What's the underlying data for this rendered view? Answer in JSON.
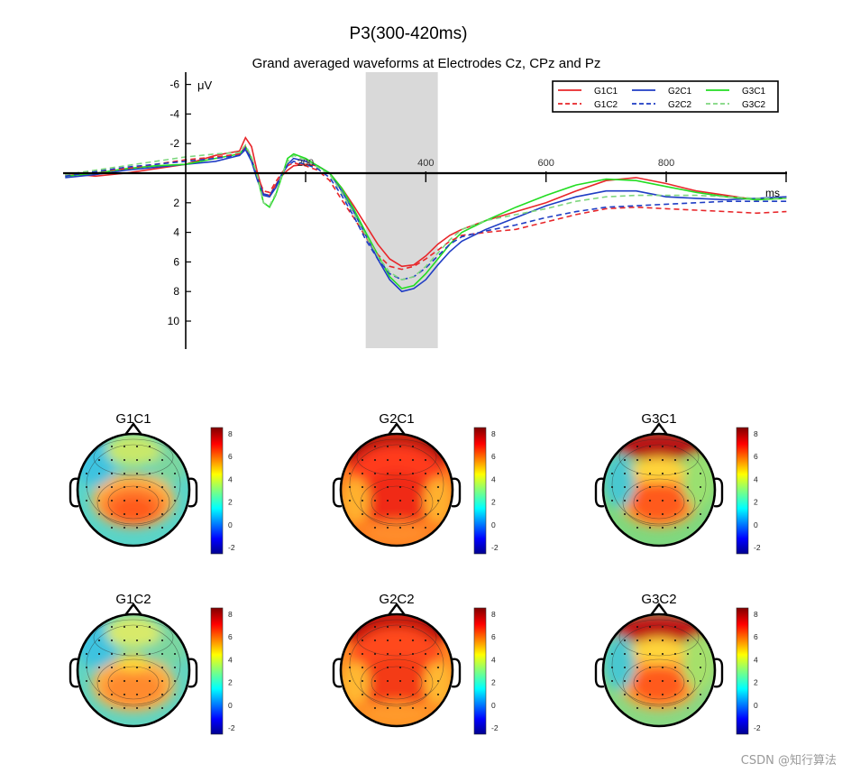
{
  "chart_data": [
    {
      "type": "line",
      "title": "P3(300-420ms)",
      "subtitle": "Grand averaged waveforms at Electrodes Cz, CPz and Pz",
      "xlabel": "ms",
      "ylabel": "μV",
      "xlim": [
        -200,
        1000
      ],
      "ylim": [
        -7,
        12
      ],
      "y_reversed": true,
      "x_ticks": [
        {
          "v": 200,
          "label": "200"
        },
        {
          "v": 400,
          "label": "400"
        },
        {
          "v": 600,
          "label": "600"
        },
        {
          "v": 800,
          "label": "800"
        }
      ],
      "y_ticks": [
        {
          "v": -6,
          "label": "-6"
        },
        {
          "v": -4,
          "label": "-4"
        },
        {
          "v": -2,
          "label": "-2"
        },
        {
          "v": 2,
          "label": "2"
        },
        {
          "v": 4,
          "label": "4"
        },
        {
          "v": 6,
          "label": "6"
        },
        {
          "v": 8,
          "label": "8"
        },
        {
          "v": 10,
          "label": "10"
        }
      ],
      "shaded_window_ms": [
        300,
        420
      ],
      "legend_position": "top-right",
      "series": [
        {
          "name": "G1C1",
          "color": "#e8262a",
          "dash": false,
          "points": [
            [
              -200,
              0
            ],
            [
              -150,
              0.2
            ],
            [
              -100,
              0
            ],
            [
              -50,
              -0.3
            ],
            [
              0,
              -0.6
            ],
            [
              50,
              -1.2
            ],
            [
              90,
              -1.5
            ],
            [
              100,
              -2.4
            ],
            [
              110,
              -1.8
            ],
            [
              120,
              0
            ],
            [
              130,
              1.4
            ],
            [
              140,
              1.5
            ],
            [
              150,
              0.8
            ],
            [
              160,
              0.2
            ],
            [
              170,
              -0.2
            ],
            [
              180,
              -0.5
            ],
            [
              200,
              -0.6
            ],
            [
              220,
              -0.5
            ],
            [
              240,
              0
            ],
            [
              260,
              1
            ],
            [
              280,
              2.2
            ],
            [
              300,
              3.5
            ],
            [
              320,
              4.8
            ],
            [
              340,
              5.8
            ],
            [
              360,
              6.3
            ],
            [
              380,
              6.2
            ],
            [
              400,
              5.6
            ],
            [
              420,
              4.8
            ],
            [
              440,
              4.2
            ],
            [
              460,
              3.8
            ],
            [
              500,
              3.2
            ],
            [
              550,
              2.6
            ],
            [
              600,
              2
            ],
            [
              650,
              1.2
            ],
            [
              700,
              0.5
            ],
            [
              750,
              0.3
            ],
            [
              800,
              0.7
            ],
            [
              850,
              1.2
            ],
            [
              900,
              1.5
            ],
            [
              950,
              1.8
            ],
            [
              1000,
              1.6
            ]
          ]
        },
        {
          "name": "G2C1",
          "color": "#1f3dc4",
          "dash": false,
          "points": [
            [
              -200,
              0.3
            ],
            [
              -150,
              0.1
            ],
            [
              -100,
              -0.2
            ],
            [
              -50,
              -0.4
            ],
            [
              0,
              -0.6
            ],
            [
              50,
              -0.8
            ],
            [
              90,
              -1.2
            ],
            [
              100,
              -1.6
            ],
            [
              110,
              -0.8
            ],
            [
              120,
              0.5
            ],
            [
              130,
              1.5
            ],
            [
              140,
              1.6
            ],
            [
              150,
              1
            ],
            [
              160,
              0.2
            ],
            [
              170,
              -0.6
            ],
            [
              180,
              -1
            ],
            [
              200,
              -0.8
            ],
            [
              220,
              -0.5
            ],
            [
              240,
              0
            ],
            [
              260,
              1.2
            ],
            [
              280,
              2.6
            ],
            [
              300,
              4.2
            ],
            [
              320,
              5.8
            ],
            [
              340,
              7.2
            ],
            [
              360,
              8
            ],
            [
              380,
              7.8
            ],
            [
              400,
              7.2
            ],
            [
              420,
              6.2
            ],
            [
              440,
              5.3
            ],
            [
              460,
              4.6
            ],
            [
              500,
              3.8
            ],
            [
              550,
              3
            ],
            [
              600,
              2.2
            ],
            [
              650,
              1.6
            ],
            [
              700,
              1.2
            ],
            [
              750,
              1.2
            ],
            [
              800,
              1.6
            ],
            [
              850,
              1.7
            ],
            [
              900,
              1.8
            ],
            [
              950,
              1.7
            ],
            [
              1000,
              1.6
            ]
          ]
        },
        {
          "name": "G3C1",
          "color": "#22dd22",
          "dash": false,
          "points": [
            [
              -200,
              0.2
            ],
            [
              -150,
              0
            ],
            [
              -100,
              -0.3
            ],
            [
              -50,
              -0.5
            ],
            [
              0,
              -0.6
            ],
            [
              50,
              -1
            ],
            [
              90,
              -1.3
            ],
            [
              100,
              -1.8
            ],
            [
              110,
              -1
            ],
            [
              120,
              0.3
            ],
            [
              130,
              2
            ],
            [
              140,
              2.3
            ],
            [
              150,
              1.5
            ],
            [
              160,
              0.3
            ],
            [
              170,
              -1
            ],
            [
              180,
              -1.3
            ],
            [
              200,
              -1
            ],
            [
              220,
              -0.5
            ],
            [
              240,
              0
            ],
            [
              260,
              1
            ],
            [
              280,
              2.4
            ],
            [
              300,
              4
            ],
            [
              320,
              5.5
            ],
            [
              340,
              7
            ],
            [
              360,
              7.8
            ],
            [
              380,
              7.6
            ],
            [
              400,
              6.8
            ],
            [
              420,
              5.8
            ],
            [
              440,
              4.8
            ],
            [
              460,
              4
            ],
            [
              500,
              3.2
            ],
            [
              550,
              2.3
            ],
            [
              600,
              1.5
            ],
            [
              650,
              0.8
            ],
            [
              700,
              0.4
            ],
            [
              750,
              0.5
            ],
            [
              800,
              0.9
            ],
            [
              850,
              1.3
            ],
            [
              900,
              1.6
            ],
            [
              950,
              1.8
            ],
            [
              1000,
              1.7
            ]
          ]
        },
        {
          "name": "G1C2",
          "color": "#e8262a",
          "dash": true,
          "points": [
            [
              -200,
              0.1
            ],
            [
              -150,
              -0.1
            ],
            [
              -100,
              -0.3
            ],
            [
              -50,
              -0.6
            ],
            [
              0,
              -0.9
            ],
            [
              50,
              -1.1
            ],
            [
              90,
              -1.3
            ],
            [
              100,
              -1.8
            ],
            [
              110,
              -1
            ],
            [
              120,
              0.2
            ],
            [
              130,
              1.2
            ],
            [
              140,
              1.3
            ],
            [
              150,
              0.6
            ],
            [
              160,
              0
            ],
            [
              170,
              -0.5
            ],
            [
              180,
              -0.7
            ],
            [
              200,
              -0.5
            ],
            [
              220,
              -0.2
            ],
            [
              240,
              0.5
            ],
            [
              260,
              1.8
            ],
            [
              280,
              3
            ],
            [
              300,
              4.3
            ],
            [
              320,
              5.5
            ],
            [
              340,
              6.3
            ],
            [
              360,
              6.5
            ],
            [
              380,
              6.3
            ],
            [
              400,
              5.8
            ],
            [
              420,
              5.2
            ],
            [
              440,
              4.6
            ],
            [
              460,
              4.2
            ],
            [
              500,
              4
            ],
            [
              550,
              3.8
            ],
            [
              600,
              3.3
            ],
            [
              650,
              2.8
            ],
            [
              700,
              2.4
            ],
            [
              750,
              2.3
            ],
            [
              800,
              2.4
            ],
            [
              850,
              2.5
            ],
            [
              900,
              2.6
            ],
            [
              950,
              2.7
            ],
            [
              1000,
              2.6
            ]
          ]
        },
        {
          "name": "G2C2",
          "color": "#1f3dc4",
          "dash": true,
          "points": [
            [
              -200,
              0.2
            ],
            [
              -150,
              -0.1
            ],
            [
              -100,
              -0.4
            ],
            [
              -50,
              -0.6
            ],
            [
              0,
              -0.8
            ],
            [
              50,
              -1
            ],
            [
              90,
              -1.2
            ],
            [
              100,
              -1.7
            ],
            [
              110,
              -0.9
            ],
            [
              120,
              0.4
            ],
            [
              130,
              1.4
            ],
            [
              140,
              1.5
            ],
            [
              150,
              0.9
            ],
            [
              160,
              0.1
            ],
            [
              170,
              -0.5
            ],
            [
              180,
              -0.8
            ],
            [
              200,
              -0.6
            ],
            [
              220,
              -0.3
            ],
            [
              240,
              0.3
            ],
            [
              260,
              1.5
            ],
            [
              280,
              2.9
            ],
            [
              300,
              4.5
            ],
            [
              320,
              5.8
            ],
            [
              340,
              6.8
            ],
            [
              360,
              7.2
            ],
            [
              380,
              7
            ],
            [
              400,
              6.4
            ],
            [
              420,
              5.6
            ],
            [
              440,
              4.8
            ],
            [
              460,
              4.3
            ],
            [
              500,
              3.9
            ],
            [
              550,
              3.5
            ],
            [
              600,
              3
            ],
            [
              650,
              2.6
            ],
            [
              700,
              2.3
            ],
            [
              750,
              2.2
            ],
            [
              800,
              2.1
            ],
            [
              850,
              2
            ],
            [
              900,
              1.9
            ],
            [
              950,
              1.9
            ],
            [
              1000,
              1.9
            ]
          ]
        },
        {
          "name": "G3C2",
          "color": "#7fd67f",
          "dash": true,
          "points": [
            [
              -200,
              0.1
            ],
            [
              -150,
              -0.2
            ],
            [
              -100,
              -0.5
            ],
            [
              -50,
              -0.8
            ],
            [
              0,
              -1.1
            ],
            [
              50,
              -1.3
            ],
            [
              90,
              -1.4
            ],
            [
              100,
              -1.9
            ],
            [
              110,
              -1.1
            ],
            [
              120,
              0.2
            ],
            [
              130,
              2
            ],
            [
              140,
              2.2
            ],
            [
              150,
              1.4
            ],
            [
              160,
              0.2
            ],
            [
              170,
              -0.8
            ],
            [
              180,
              -1.2
            ],
            [
              200,
              -0.9
            ],
            [
              220,
              -0.4
            ],
            [
              240,
              0.1
            ],
            [
              260,
              1.3
            ],
            [
              280,
              2.7
            ],
            [
              300,
              4.2
            ],
            [
              320,
              5.6
            ],
            [
              340,
              6.7
            ],
            [
              360,
              7.2
            ],
            [
              380,
              7
            ],
            [
              400,
              6.3
            ],
            [
              420,
              5.4
            ],
            [
              440,
              4.5
            ],
            [
              460,
              3.8
            ],
            [
              500,
              3.2
            ],
            [
              550,
              2.8
            ],
            [
              600,
              2.4
            ],
            [
              650,
              1.9
            ],
            [
              700,
              1.6
            ],
            [
              750,
              1.5
            ],
            [
              800,
              1.5
            ],
            [
              850,
              1.5
            ],
            [
              900,
              1.6
            ],
            [
              950,
              1.7
            ],
            [
              1000,
              1.7
            ]
          ]
        }
      ]
    },
    {
      "type": "heatmap",
      "subtype": "topographic_scalp_maps",
      "colormap": "jet",
      "colorbar_range": [
        -2,
        8
      ],
      "colorbar_ticks": [
        "8",
        "6",
        "4",
        "2",
        "0",
        "-2"
      ],
      "maps": [
        {
          "name": "G1C1",
          "profile": "central-parietal peak"
        },
        {
          "name": "G2C1",
          "profile": "broad, frontal peak"
        },
        {
          "name": "G3C1",
          "profile": "central peak"
        },
        {
          "name": "G1C2",
          "profile": "central-parietal peak, weaker"
        },
        {
          "name": "G2C2",
          "profile": "broad, frontal peak"
        },
        {
          "name": "G3C2",
          "profile": "central peak, frontal strip"
        }
      ]
    }
  ],
  "watermark": "CSDN @知行算法"
}
